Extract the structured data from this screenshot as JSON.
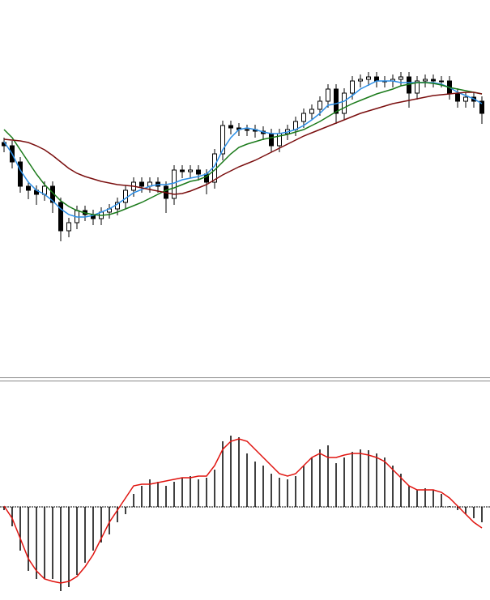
{
  "chart_data": [
    {
      "type": "candlestick",
      "open": [
        292,
        288,
        268,
        238,
        233,
        228,
        238,
        218,
        183,
        193,
        208,
        203,
        198,
        206,
        210,
        218,
        233,
        243,
        238,
        243,
        238,
        223,
        258,
        256,
        258,
        253,
        243,
        278,
        313,
        310,
        308,
        308,
        306,
        303,
        288,
        303,
        308,
        318,
        328,
        333,
        343,
        358,
        328,
        353,
        368,
        370,
        373,
        368,
        368,
        370,
        373,
        353,
        368,
        370,
        368,
        368,
        353,
        343,
        348,
        343
      ],
      "high": [
        298,
        294,
        274,
        244,
        239,
        244,
        244,
        224,
        199,
        214,
        214,
        209,
        212,
        216,
        224,
        239,
        249,
        249,
        249,
        249,
        244,
        264,
        264,
        264,
        264,
        259,
        284,
        319,
        319,
        316,
        314,
        314,
        312,
        309,
        309,
        314,
        324,
        334,
        339,
        349,
        364,
        364,
        359,
        374,
        376,
        379,
        379,
        374,
        376,
        379,
        379,
        374,
        376,
        376,
        374,
        374,
        359,
        354,
        354,
        349
      ],
      "low": [
        280,
        260,
        230,
        222,
        215,
        220,
        205,
        170,
        175,
        185,
        195,
        190,
        190,
        198,
        202,
        210,
        225,
        230,
        230,
        230,
        205,
        215,
        248,
        248,
        245,
        228,
        235,
        270,
        302,
        300,
        300,
        298,
        295,
        280,
        280,
        295,
        300,
        310,
        320,
        325,
        335,
        315,
        320,
        345,
        360,
        362,
        360,
        360,
        360,
        362,
        335,
        345,
        360,
        360,
        360,
        345,
        335,
        335,
        335,
        315
      ],
      "close": [
        288,
        268,
        238,
        233,
        228,
        238,
        218,
        183,
        193,
        208,
        203,
        198,
        206,
        210,
        218,
        233,
        243,
        238,
        243,
        238,
        223,
        258,
        256,
        258,
        253,
        243,
        278,
        313,
        310,
        308,
        308,
        306,
        303,
        288,
        303,
        308,
        318,
        328,
        333,
        343,
        358,
        328,
        353,
        368,
        370,
        373,
        368,
        368,
        370,
        373,
        353,
        368,
        370,
        368,
        368,
        353,
        343,
        348,
        343,
        328
      ],
      "up_color": "#ffffff",
      "down_color": "#000000",
      "ylim": [
        0,
        468
      ],
      "series": [
        {
          "color": "#2b8ee6",
          "values": [
            293,
            278,
            258,
            243,
            233,
            228,
            220,
            210,
            203,
            200,
            200,
            202,
            206,
            210,
            216,
            223,
            230,
            234,
            238,
            240,
            240,
            242,
            246,
            248,
            250,
            253,
            263,
            283,
            298,
            308,
            310,
            308,
            305,
            303,
            303,
            305,
            308,
            313,
            320,
            328,
            338,
            340,
            343,
            350,
            358,
            363,
            368,
            368,
            368,
            366,
            366,
            366,
            366,
            366,
            364,
            360,
            354,
            350,
            346,
            340
          ]
        },
        {
          "color": "#1a7a1a",
          "values": [
            308,
            298,
            283,
            268,
            253,
            240,
            230,
            220,
            213,
            208,
            205,
            203,
            202,
            203,
            206,
            210,
            214,
            218,
            223,
            228,
            233,
            236,
            240,
            244,
            246,
            250,
            258,
            268,
            278,
            286,
            290,
            293,
            296,
            298,
            300,
            302,
            305,
            308,
            313,
            318,
            324,
            330,
            335,
            340,
            344,
            348,
            352,
            355,
            358,
            362,
            364,
            366,
            366,
            365,
            363,
            360,
            358,
            356,
            354,
            352
          ]
        },
        {
          "color": "#7a0e0e",
          "values": [
            296,
            295,
            294,
            292,
            288,
            283,
            276,
            268,
            260,
            254,
            250,
            247,
            244,
            242,
            240,
            239,
            238,
            236,
            234,
            232,
            230,
            228,
            229,
            232,
            236,
            240,
            246,
            252,
            257,
            262,
            266,
            270,
            275,
            280,
            285,
            290,
            295,
            300,
            304,
            308,
            312,
            316,
            320,
            324,
            328,
            331,
            334,
            337,
            340,
            342,
            344,
            346,
            348,
            350,
            351,
            352,
            353,
            354,
            354,
            352
          ]
        }
      ]
    },
    {
      "type": "macd",
      "values": [
        -4,
        -24,
        -54,
        -79,
        -89,
        -89,
        -89,
        -104,
        -99,
        -84,
        -69,
        -54,
        -44,
        -34,
        -19,
        -9,
        16,
        26,
        34,
        31,
        26,
        31,
        36,
        38,
        34,
        36,
        46,
        81,
        88,
        86,
        66,
        56,
        51,
        41,
        36,
        34,
        38,
        51,
        61,
        71,
        76,
        54,
        61,
        68,
        71,
        70,
        66,
        61,
        51,
        41,
        26,
        21,
        23,
        21,
        16,
        1,
        -4,
        -9,
        -14,
        -19
      ],
      "color": "#000000",
      "ylim": [
        -115,
        154
      ],
      "series": [
        {
          "color": "#e0140f",
          "values": [
            1,
            -14,
            -39,
            -64,
            -79,
            -89,
            -92,
            -94,
            -92,
            -86,
            -74,
            -59,
            -39,
            -19,
            -4,
            11,
            26,
            28,
            28,
            30,
            32,
            34,
            36,
            36,
            38,
            38,
            51,
            71,
            81,
            84,
            81,
            71,
            61,
            51,
            41,
            38,
            41,
            51,
            61,
            66,
            61,
            61,
            64,
            66,
            66,
            64,
            61,
            56,
            46,
            36,
            26,
            21,
            21,
            21,
            18,
            11,
            1,
            -9,
            -19,
            -26
          ]
        }
      ]
    }
  ]
}
